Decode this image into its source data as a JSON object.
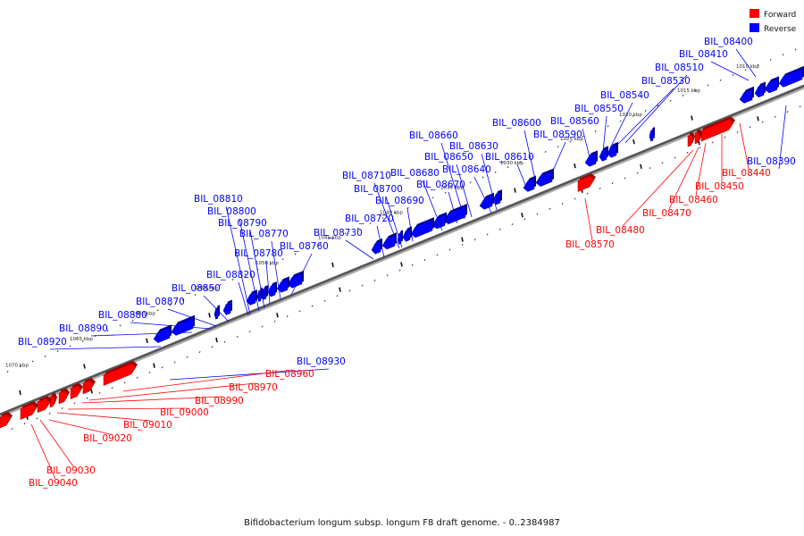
{
  "caption": "Bifidobacterium longum subsp. longum F8 draft genome. - 0..2384987",
  "legend": [
    {
      "label": "Forward",
      "color": "#ff0000"
    },
    {
      "label": "Reverse",
      "color": "#0000ff"
    }
  ],
  "colors": {
    "forward": "#ff0000",
    "reverse": "#0000ff",
    "axis": "#888888"
  },
  "ticks": [
    "1010 kbp",
    "1015 kbp",
    "1020 kbp",
    "1025 kbp",
    "1030 kbp",
    "1035 kbp",
    "1040 kbp",
    "1045 kbp",
    "1050 kbp",
    "1055 kbp",
    "1060 kbp",
    "1065 kbp",
    "1070 kbp"
  ],
  "genes": [
    {
      "name": "BIL_08390",
      "strand": "reverse"
    },
    {
      "name": "BIL_08400",
      "strand": "reverse"
    },
    {
      "name": "BIL_08410",
      "strand": "reverse"
    },
    {
      "name": "BIL_08510",
      "strand": "reverse"
    },
    {
      "name": "BIL_08530",
      "strand": "reverse"
    },
    {
      "name": "BIL_08540",
      "strand": "reverse"
    },
    {
      "name": "BIL_08550",
      "strand": "reverse"
    },
    {
      "name": "BIL_08560",
      "strand": "reverse"
    },
    {
      "name": "BIL_08590",
      "strand": "reverse"
    },
    {
      "name": "BIL_08600",
      "strand": "reverse"
    },
    {
      "name": "BIL_08610",
      "strand": "reverse"
    },
    {
      "name": "BIL_08630",
      "strand": "reverse"
    },
    {
      "name": "BIL_08640",
      "strand": "reverse"
    },
    {
      "name": "BIL_08650",
      "strand": "reverse"
    },
    {
      "name": "BIL_08660",
      "strand": "reverse"
    },
    {
      "name": "BIL_08670",
      "strand": "reverse"
    },
    {
      "name": "BIL_08680",
      "strand": "reverse"
    },
    {
      "name": "BIL_08690",
      "strand": "reverse"
    },
    {
      "name": "BIL_08700",
      "strand": "reverse"
    },
    {
      "name": "BIL_08710",
      "strand": "reverse"
    },
    {
      "name": "BIL_08720",
      "strand": "reverse"
    },
    {
      "name": "BIL_08730",
      "strand": "reverse"
    },
    {
      "name": "BIL_08760",
      "strand": "reverse"
    },
    {
      "name": "BIL_08770",
      "strand": "reverse"
    },
    {
      "name": "BIL_08780",
      "strand": "reverse"
    },
    {
      "name": "BIL_08790",
      "strand": "reverse"
    },
    {
      "name": "BIL_08800",
      "strand": "reverse"
    },
    {
      "name": "BIL_08810",
      "strand": "reverse"
    },
    {
      "name": "BIL_08820",
      "strand": "reverse"
    },
    {
      "name": "BIL_08850",
      "strand": "reverse"
    },
    {
      "name": "BIL_08870",
      "strand": "reverse"
    },
    {
      "name": "BIL_08880",
      "strand": "reverse"
    },
    {
      "name": "BIL_08890",
      "strand": "reverse"
    },
    {
      "name": "BIL_08920",
      "strand": "reverse"
    },
    {
      "name": "BIL_08930",
      "strand": "reverse"
    },
    {
      "name": "BIL_08440",
      "strand": "forward"
    },
    {
      "name": "BIL_08450",
      "strand": "forward"
    },
    {
      "name": "BIL_08460",
      "strand": "forward"
    },
    {
      "name": "BIL_08470",
      "strand": "forward"
    },
    {
      "name": "BIL_08480",
      "strand": "forward"
    },
    {
      "name": "BIL_08570",
      "strand": "forward"
    },
    {
      "name": "BIL_08960",
      "strand": "forward"
    },
    {
      "name": "BIL_08970",
      "strand": "forward"
    },
    {
      "name": "BIL_08990",
      "strand": "forward"
    },
    {
      "name": "BIL_09000",
      "strand": "forward"
    },
    {
      "name": "BIL_09010",
      "strand": "forward"
    },
    {
      "name": "BIL_09020",
      "strand": "forward"
    },
    {
      "name": "BIL_09030",
      "strand": "forward"
    },
    {
      "name": "BIL_09040",
      "strand": "forward"
    }
  ]
}
